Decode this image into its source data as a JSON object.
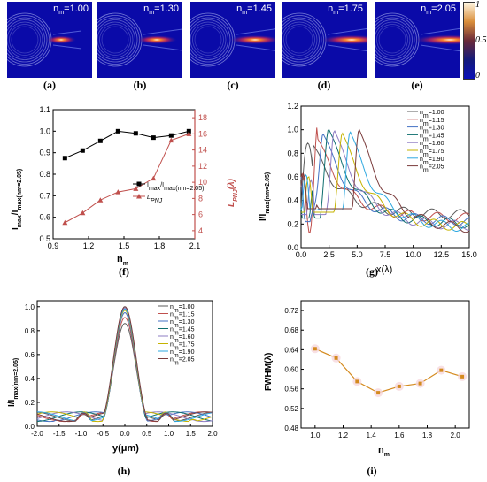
{
  "colorbar": {
    "ticks": [
      "1",
      "0.5",
      "0"
    ]
  },
  "fields": [
    {
      "label": "(a)",
      "nm": "n_m=1.00",
      "nm_value": "1.00"
    },
    {
      "label": "(b)",
      "nm": "n_m=1.30",
      "nm_value": "1.30"
    },
    {
      "label": "(c)",
      "nm": "n_m=1.45",
      "nm_value": "1.45"
    },
    {
      "label": "(d)",
      "nm": "n_m=1.75",
      "nm_value": "1.75"
    },
    {
      "label": "(e)",
      "nm": "n_m=2.05",
      "nm_value": "2.05"
    }
  ],
  "panel_labels": {
    "f": "(f)",
    "g": "(g)",
    "h": "(h)",
    "i": "(i)"
  },
  "chart_data": [
    {
      "id": "f",
      "type": "line",
      "x": [
        1.0,
        1.15,
        1.3,
        1.45,
        1.6,
        1.75,
        1.9,
        2.05
      ],
      "xlabel": "n_m",
      "xlim": [
        0.9,
        2.1
      ],
      "xticks": [
        "0.9",
        "1.2",
        "1.5",
        "1.8",
        "2.1"
      ],
      "ylabel_left": "I_max/I_max(n_m=2.05)",
      "ylim_left": [
        0.5,
        1.1
      ],
      "yticks_left": [
        "0.5",
        "0.6",
        "0.7",
        "0.8",
        "0.9",
        "1.0",
        "1.1"
      ],
      "ylabel_right": "L_PNJ(λ)",
      "ylim_right": [
        3,
        19
      ],
      "yticks_right": [
        "4",
        "6",
        "8",
        "10",
        "12",
        "14",
        "16",
        "18"
      ],
      "series": [
        {
          "name": "I_max/I_max(n_m=2.05)",
          "axis": "left",
          "color": "#000000",
          "marker": "square",
          "values": [
            0.875,
            0.91,
            0.955,
            1.0,
            0.99,
            0.97,
            0.98,
            1.0
          ]
        },
        {
          "name": "L_PNJ",
          "axis": "right",
          "color": "#c0504d",
          "marker": "triangle",
          "values": [
            5.0,
            6.2,
            7.8,
            8.8,
            9.2,
            10.5,
            15.2,
            16.0
          ]
        }
      ],
      "legend": "center-right"
    },
    {
      "id": "g",
      "type": "line",
      "xlabel": "x(λ)",
      "xlim": [
        0,
        15
      ],
      "xticks": [
        "0.0",
        "2.5",
        "5.0",
        "7.5",
        "10.0",
        "12.5",
        "15.0"
      ],
      "ylabel": "I/I_max(n_m=2.05)",
      "ylim": [
        0.0,
        1.2
      ],
      "yticks": [
        "0.0",
        "0.2",
        "0.4",
        "0.6",
        "0.8",
        "1.0",
        "1.2"
      ],
      "legend": "top-right",
      "series": [
        {
          "name": "n_m=1.00",
          "color": "#5b5b5b",
          "peak_x": 1.0,
          "peak_y": 0.88,
          "min_x": 2.0,
          "min_y": 0.1,
          "tail_y": 0.28
        },
        {
          "name": "n_m=1.15",
          "color": "#c0504d",
          "peak_x": 1.5,
          "peak_y": 0.92,
          "min_x": 2.4,
          "min_y": 0.13,
          "tail_y": 0.25
        },
        {
          "name": "n_m=1.30",
          "color": "#4472c4",
          "peak_x": 2.0,
          "peak_y": 0.96,
          "min_x": 0.8,
          "min_y": 0.22,
          "tail_y": 0.22
        },
        {
          "name": "n_m=1.45",
          "color": "#0e6e6e",
          "peak_x": 2.5,
          "peak_y": 1.0,
          "min_x": 1.0,
          "min_y": 0.25,
          "tail_y": 0.2
        },
        {
          "name": "n_m=1.60",
          "color": "#8e7cc3",
          "peak_x": 3.0,
          "peak_y": 0.99,
          "min_x": 1.2,
          "min_y": 0.28,
          "tail_y": 0.18
        },
        {
          "name": "n_m=1.75",
          "color": "#c5b300",
          "peak_x": 3.7,
          "peak_y": 0.97,
          "min_x": 1.3,
          "min_y": 0.3,
          "tail_y": 0.17
        },
        {
          "name": "n_m=1.90",
          "color": "#2ea8e0",
          "peak_x": 4.4,
          "peak_y": 0.98,
          "min_x": 1.4,
          "min_y": 0.32,
          "tail_y": 0.16
        },
        {
          "name": "n_m=2.05",
          "color": "#7a3b3b",
          "peak_x": 5.2,
          "peak_y": 1.0,
          "min_x": 1.5,
          "min_y": 0.33,
          "tail_y": 0.15
        }
      ]
    },
    {
      "id": "h",
      "type": "line",
      "xlabel": "y(μm)",
      "xlim": [
        -2.0,
        2.0
      ],
      "xticks": [
        "-2.0",
        "-1.5",
        "-1.0",
        "-0.5",
        "0.0",
        "0.5",
        "1.0",
        "1.5",
        "2.0"
      ],
      "ylabel": "I/I_max(n_m=2.05)",
      "ylim": [
        0.0,
        1.05
      ],
      "yticks": [
        "0.0",
        "0.2",
        "0.4",
        "0.6",
        "0.8",
        "1.0"
      ],
      "legend": "top-right",
      "series": [
        {
          "name": "n_m=1.00",
          "color": "#5b5b5b",
          "peak": 0.86,
          "width": 0.58,
          "side": 0.24
        },
        {
          "name": "n_m=1.15",
          "color": "#c0504d",
          "peak": 0.91,
          "width": 0.57,
          "side": 0.25
        },
        {
          "name": "n_m=1.30",
          "color": "#4472c4",
          "peak": 0.95,
          "width": 0.56,
          "side": 0.26
        },
        {
          "name": "n_m=1.45",
          "color": "#0e6e6e",
          "peak": 1.0,
          "width": 0.55,
          "side": 0.27
        },
        {
          "name": "n_m=1.60",
          "color": "#8e7cc3",
          "peak": 0.99,
          "width": 0.56,
          "side": 0.28
        },
        {
          "name": "n_m=1.75",
          "color": "#c5b300",
          "peak": 0.97,
          "width": 0.57,
          "side": 0.3
        },
        {
          "name": "n_m=1.90",
          "color": "#2ea8e0",
          "peak": 0.98,
          "width": 0.58,
          "side": 0.28
        },
        {
          "name": "n_m=2.05",
          "color": "#7a3b3b",
          "peak": 1.0,
          "width": 0.58,
          "side": 0.26
        }
      ]
    },
    {
      "id": "i",
      "type": "line",
      "x": [
        1.0,
        1.15,
        1.3,
        1.45,
        1.6,
        1.75,
        1.9,
        2.05
      ],
      "values": [
        0.642,
        0.623,
        0.575,
        0.552,
        0.565,
        0.571,
        0.598,
        0.585
      ],
      "xlabel": "n_m",
      "xlim": [
        0.9,
        2.1
      ],
      "xticks": [
        "1.0",
        "1.2",
        "1.4",
        "1.6",
        "1.8",
        "2.0"
      ],
      "ylabel": "FWHM(λ)",
      "ylim": [
        0.48,
        0.74
      ],
      "yticks": [
        "0.48",
        "0.52",
        "0.56",
        "0.60",
        "0.64",
        "0.68",
        "0.72"
      ],
      "color": "#d48a1e",
      "grid": false
    }
  ]
}
